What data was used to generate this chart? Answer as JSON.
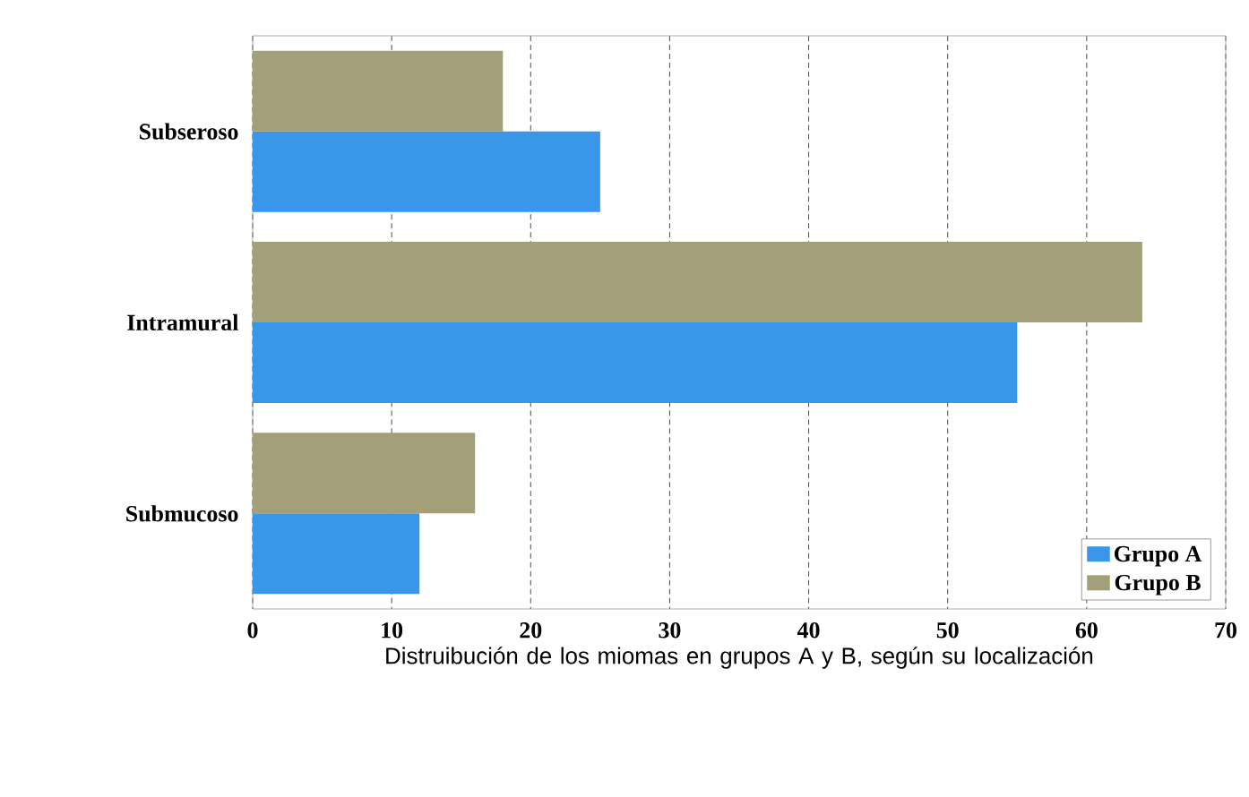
{
  "chart_data": {
    "type": "bar",
    "orientation": "horizontal",
    "xlabel": "Distruibución de los miomas en grupos A y B, según  su localización",
    "categories": [
      "Subseroso",
      "Intramural",
      "Submucoso"
    ],
    "series": [
      {
        "name": "Grupo A",
        "color": "#3a96e8",
        "values": [
          25,
          55,
          12
        ]
      },
      {
        "name": "Grupo B",
        "color": "#a39f78",
        "values": [
          18,
          64,
          16
        ]
      }
    ],
    "xlim": [
      0,
      70
    ],
    "xticks": [
      0,
      10,
      20,
      30,
      40,
      50,
      60,
      70
    ],
    "grid": "x",
    "legend": "bottom right"
  }
}
